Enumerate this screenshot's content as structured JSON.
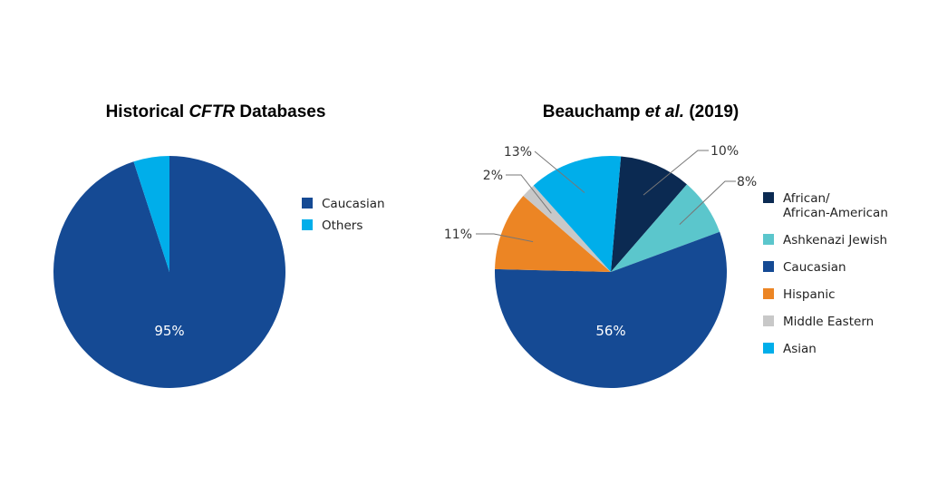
{
  "chart_data": [
    {
      "type": "pie",
      "title_parts": [
        "Historical ",
        "CFTR",
        " Databases"
      ],
      "slices": [
        {
          "label": "Caucasian",
          "value": 95,
          "display": "95%",
          "color": "#154a94"
        },
        {
          "label": "Others",
          "value": 5,
          "display": "",
          "color": "#00aeea"
        }
      ],
      "legend": [
        "Caucasian",
        "Others"
      ],
      "legend_placement": "right"
    },
    {
      "type": "pie",
      "title_parts": [
        "Beauchamp ",
        "et al.",
        " (2019)"
      ],
      "slices": [
        {
          "label": "African/ African-American",
          "value": 10,
          "display": "10%",
          "color": "#0b2a52"
        },
        {
          "label": "Ashkenazi Jewish",
          "value": 8,
          "display": "8%",
          "color": "#5bc6cc"
        },
        {
          "label": "Caucasian",
          "value": 56,
          "display": "56%",
          "color": "#154a94"
        },
        {
          "label": "Hispanic",
          "value": 11,
          "display": "11%",
          "color": "#ec8524"
        },
        {
          "label": "Middle Eastern",
          "value": 2,
          "display": "2%",
          "color": "#c8c8c8"
        },
        {
          "label": "Asian",
          "value": 13,
          "display": "13%",
          "color": "#00aeea"
        }
      ],
      "legend": [
        [
          "African/",
          "African-American"
        ],
        [
          "Ashkenazi Jewish"
        ],
        [
          "Caucasian"
        ],
        [
          "Hispanic"
        ],
        [
          "Middle Eastern"
        ],
        [
          "Asian"
        ]
      ],
      "legend_placement": "right"
    }
  ]
}
